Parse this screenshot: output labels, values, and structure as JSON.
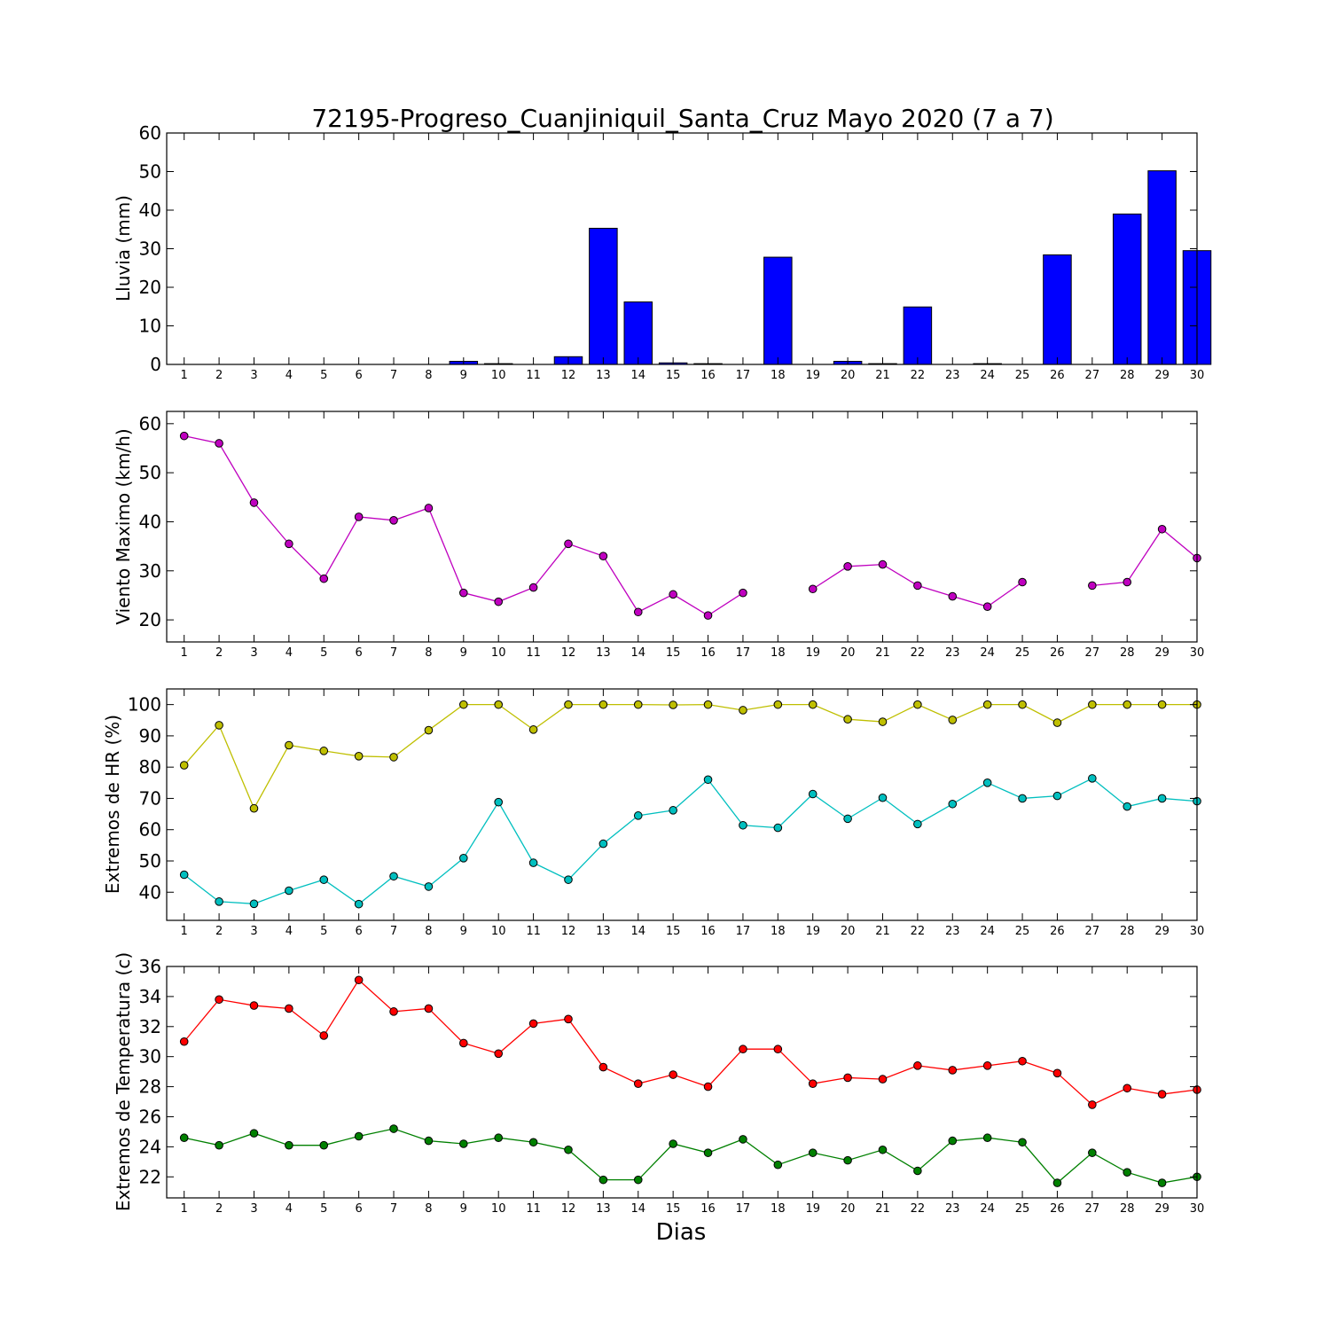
{
  "figure": {
    "title": "72195-Progreso_Cuanjiniquil_Santa_Cruz Mayo 2020  (7 a 7)",
    "xlabel": "Dias"
  },
  "chart_data": [
    {
      "id": "rain",
      "type": "bar",
      "ylabel": "Lluvia (mm)",
      "ylim": [
        0,
        60
      ],
      "yticks": [
        0,
        10,
        20,
        30,
        40,
        50,
        60
      ],
      "categories": [
        1,
        2,
        3,
        4,
        5,
        6,
        7,
        8,
        9,
        10,
        11,
        12,
        13,
        14,
        15,
        16,
        17,
        18,
        19,
        20,
        21,
        22,
        23,
        24,
        25,
        26,
        27,
        28,
        29,
        30
      ],
      "series": [
        {
          "color": "#0000ff",
          "values": [
            0,
            0,
            0,
            0,
            0,
            0,
            0,
            0,
            0.8,
            0.2,
            0,
            2,
            35.3,
            16.2,
            0.4,
            0.2,
            0,
            27.8,
            0,
            0.8,
            0.2,
            14.9,
            0,
            0.2,
            0,
            28.4,
            0,
            39,
            50.2,
            29.5
          ]
        }
      ]
    },
    {
      "id": "wind",
      "type": "line",
      "ylabel": "Viento Maximo (km/h)",
      "ylim": [
        15.5,
        62.5
      ],
      "yticks": [
        20,
        30,
        40,
        50,
        60
      ],
      "categories": [
        1,
        2,
        3,
        4,
        5,
        6,
        7,
        8,
        9,
        10,
        11,
        12,
        13,
        14,
        15,
        16,
        17,
        18,
        19,
        20,
        21,
        22,
        23,
        24,
        25,
        26,
        27,
        28,
        29,
        30
      ],
      "series": [
        {
          "color": "#bf00bf",
          "values": [
            57.5,
            56,
            43.9,
            35.5,
            28.4,
            41,
            40.3,
            42.8,
            25.5,
            23.7,
            26.6,
            35.5,
            33,
            21.6,
            25.2,
            20.9,
            25.5,
            null,
            26.3,
            30.9,
            31.3,
            27,
            24.8,
            22.7,
            27.7,
            null,
            27,
            27.7,
            38.5,
            32.6
          ]
        }
      ]
    },
    {
      "id": "humidity",
      "type": "line",
      "ylabel": "Extremos de HR (%)",
      "ylim": [
        31,
        105
      ],
      "yticks": [
        40,
        50,
        60,
        70,
        80,
        90,
        100
      ],
      "categories": [
        1,
        2,
        3,
        4,
        5,
        6,
        7,
        8,
        9,
        10,
        11,
        12,
        13,
        14,
        15,
        16,
        17,
        18,
        19,
        20,
        21,
        22,
        23,
        24,
        25,
        26,
        27,
        28,
        29,
        30
      ],
      "series": [
        {
          "color": "#bfbf00",
          "values": [
            80.6,
            93.4,
            66.8,
            87,
            85.2,
            83.5,
            83.2,
            91.8,
            100,
            100,
            92,
            100,
            100,
            100,
            99.9,
            100,
            98.2,
            100,
            100,
            95.3,
            94.5,
            100,
            95.1,
            100,
            100,
            94.2,
            100,
            100,
            100,
            100
          ]
        },
        {
          "color": "#00bfbf",
          "values": [
            45.6,
            37,
            36.3,
            40.5,
            44,
            36.2,
            45.1,
            41.8,
            50.9,
            68.8,
            49.4,
            44,
            55.5,
            64.5,
            66.2,
            76,
            61.4,
            60.6,
            71.4,
            63.5,
            70.2,
            61.8,
            68.2,
            75,
            70,
            70.8,
            76.4,
            67.4,
            70,
            69.1
          ]
        }
      ]
    },
    {
      "id": "temperature",
      "type": "line",
      "ylabel": "Extremos de Temperatura (c)",
      "ylim": [
        20.6,
        36
      ],
      "yticks": [
        22,
        24,
        26,
        28,
        30,
        32,
        34,
        36
      ],
      "categories": [
        1,
        2,
        3,
        4,
        5,
        6,
        7,
        8,
        9,
        10,
        11,
        12,
        13,
        14,
        15,
        16,
        17,
        18,
        19,
        20,
        21,
        22,
        23,
        24,
        25,
        26,
        27,
        28,
        29,
        30
      ],
      "series": [
        {
          "color": "#ff0000",
          "values": [
            31,
            33.8,
            33.4,
            33.2,
            31.4,
            35.1,
            33,
            33.2,
            30.9,
            30.2,
            32.2,
            32.5,
            29.3,
            28.2,
            28.8,
            28,
            30.5,
            30.5,
            28.2,
            28.6,
            28.5,
            29.4,
            29.1,
            29.4,
            29.7,
            28.9,
            26.8,
            27.9,
            27.5,
            27.8
          ]
        },
        {
          "color": "#008000",
          "values": [
            24.6,
            24.1,
            24.9,
            24.1,
            24.1,
            24.7,
            25.2,
            24.4,
            24.2,
            24.6,
            24.3,
            23.8,
            21.8,
            21.8,
            24.2,
            23.6,
            24.5,
            22.8,
            23.6,
            23.1,
            23.8,
            22.4,
            24.4,
            24.6,
            24.3,
            21.6,
            23.6,
            22.3,
            21.6,
            22
          ]
        }
      ]
    }
  ]
}
